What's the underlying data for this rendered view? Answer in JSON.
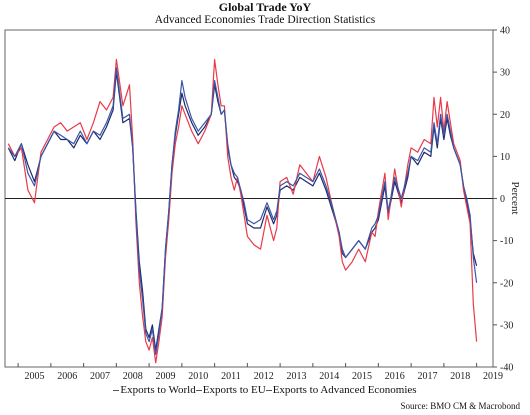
{
  "chart_data": {
    "type": "line",
    "title": "Global Trade YoY",
    "subtitle": "Advanced Economies Trade Direction Statistics",
    "ylabel": "Percent",
    "xlabel": "",
    "ylim": [
      -40,
      40
    ],
    "yticks": [
      40,
      30,
      20,
      10,
      0,
      -10,
      -20,
      -30,
      -40
    ],
    "xlim": [
      2004.6,
      2019.5
    ],
    "xticks": [
      "2005",
      "2006",
      "2007",
      "2008",
      "2009",
      "2010",
      "2011",
      "2012",
      "2013",
      "2014",
      "2015",
      "2016",
      "2017",
      "2018",
      "2019"
    ],
    "grid": false,
    "legend_position": "bottom",
    "zero_line": true,
    "series": [
      {
        "name": "Exports to World",
        "color": "#1c2a6b",
        "points": [
          [
            2004.7,
            12
          ],
          [
            2004.9,
            9
          ],
          [
            2005.1,
            13
          ],
          [
            2005.3,
            8
          ],
          [
            2005.5,
            4
          ],
          [
            2005.7,
            10
          ],
          [
            2005.9,
            13
          ],
          [
            2006.1,
            16
          ],
          [
            2006.3,
            14
          ],
          [
            2006.5,
            14
          ],
          [
            2006.7,
            12
          ],
          [
            2006.9,
            15
          ],
          [
            2007.1,
            13
          ],
          [
            2007.3,
            16
          ],
          [
            2007.5,
            14
          ],
          [
            2007.7,
            17
          ],
          [
            2007.9,
            21
          ],
          [
            2008.0,
            30
          ],
          [
            2008.2,
            18
          ],
          [
            2008.4,
            19
          ],
          [
            2008.5,
            12
          ],
          [
            2008.6,
            -3
          ],
          [
            2008.7,
            -15
          ],
          [
            2008.8,
            -22
          ],
          [
            2008.9,
            -31
          ],
          [
            2009.0,
            -33
          ],
          [
            2009.1,
            -30
          ],
          [
            2009.2,
            -36
          ],
          [
            2009.3,
            -31
          ],
          [
            2009.4,
            -26
          ],
          [
            2009.5,
            -12
          ],
          [
            2009.6,
            -3
          ],
          [
            2009.7,
            8
          ],
          [
            2009.8,
            15
          ],
          [
            2009.9,
            20
          ],
          [
            2010.0,
            25
          ],
          [
            2010.1,
            22
          ],
          [
            2010.3,
            18
          ],
          [
            2010.5,
            15
          ],
          [
            2010.7,
            17
          ],
          [
            2010.9,
            20
          ],
          [
            2011.0,
            27
          ],
          [
            2011.1,
            23
          ],
          [
            2011.2,
            20
          ],
          [
            2011.3,
            21
          ],
          [
            2011.4,
            12
          ],
          [
            2011.5,
            8
          ],
          [
            2011.6,
            5
          ],
          [
            2011.7,
            4
          ],
          [
            2011.8,
            2
          ],
          [
            2011.9,
            -2
          ],
          [
            2012.0,
            -6
          ],
          [
            2012.2,
            -7
          ],
          [
            2012.4,
            -7
          ],
          [
            2012.6,
            -2
          ],
          [
            2012.8,
            -6
          ],
          [
            2012.9,
            -4
          ],
          [
            2013.0,
            2
          ],
          [
            2013.2,
            3
          ],
          [
            2013.4,
            2
          ],
          [
            2013.6,
            5
          ],
          [
            2013.8,
            4
          ],
          [
            2014.0,
            3
          ],
          [
            2014.2,
            6
          ],
          [
            2014.4,
            2
          ],
          [
            2014.6,
            -3
          ],
          [
            2014.8,
            -8
          ],
          [
            2014.9,
            -13
          ],
          [
            2015.0,
            -14
          ],
          [
            2015.2,
            -12
          ],
          [
            2015.4,
            -10
          ],
          [
            2015.6,
            -12
          ],
          [
            2015.8,
            -8
          ],
          [
            2015.9,
            -7
          ],
          [
            2016.0,
            -5
          ],
          [
            2016.2,
            3
          ],
          [
            2016.3,
            -4
          ],
          [
            2016.5,
            4
          ],
          [
            2016.7,
            -1
          ],
          [
            2016.9,
            5
          ],
          [
            2017.0,
            10
          ],
          [
            2017.2,
            8
          ],
          [
            2017.4,
            11
          ],
          [
            2017.6,
            10
          ],
          [
            2017.7,
            17
          ],
          [
            2017.8,
            12
          ],
          [
            2017.9,
            19
          ],
          [
            2018.0,
            14
          ],
          [
            2018.1,
            19
          ],
          [
            2018.2,
            15
          ],
          [
            2018.3,
            12
          ],
          [
            2018.4,
            10
          ],
          [
            2018.5,
            8
          ],
          [
            2018.6,
            3
          ],
          [
            2018.7,
            -1
          ],
          [
            2018.8,
            -5
          ],
          [
            2018.9,
            -13
          ],
          [
            2019.0,
            -16
          ]
        ]
      },
      {
        "name": "Exports to EU",
        "color": "#e83a4a",
        "points": [
          [
            2004.7,
            13
          ],
          [
            2004.9,
            10
          ],
          [
            2005.1,
            12
          ],
          [
            2005.3,
            2
          ],
          [
            2005.5,
            -1
          ],
          [
            2005.7,
            11
          ],
          [
            2005.9,
            14
          ],
          [
            2006.1,
            17
          ],
          [
            2006.3,
            18
          ],
          [
            2006.5,
            16
          ],
          [
            2006.7,
            17
          ],
          [
            2006.9,
            18
          ],
          [
            2007.1,
            14
          ],
          [
            2007.3,
            18
          ],
          [
            2007.5,
            23
          ],
          [
            2007.7,
            21
          ],
          [
            2007.9,
            24
          ],
          [
            2008.0,
            33
          ],
          [
            2008.2,
            22
          ],
          [
            2008.4,
            27
          ],
          [
            2008.5,
            14
          ],
          [
            2008.6,
            -6
          ],
          [
            2008.7,
            -20
          ],
          [
            2008.8,
            -28
          ],
          [
            2008.9,
            -34
          ],
          [
            2009.0,
            -36
          ],
          [
            2009.1,
            -33
          ],
          [
            2009.2,
            -39
          ],
          [
            2009.3,
            -34
          ],
          [
            2009.4,
            -28
          ],
          [
            2009.5,
            -14
          ],
          [
            2009.6,
            -5
          ],
          [
            2009.7,
            6
          ],
          [
            2009.8,
            13
          ],
          [
            2009.9,
            17
          ],
          [
            2010.0,
            22
          ],
          [
            2010.1,
            20
          ],
          [
            2010.3,
            16
          ],
          [
            2010.5,
            13
          ],
          [
            2010.7,
            16
          ],
          [
            2010.9,
            20
          ],
          [
            2011.0,
            33
          ],
          [
            2011.1,
            27
          ],
          [
            2011.2,
            22
          ],
          [
            2011.3,
            22
          ],
          [
            2011.4,
            10
          ],
          [
            2011.5,
            5
          ],
          [
            2011.6,
            2
          ],
          [
            2011.7,
            5
          ],
          [
            2011.8,
            1
          ],
          [
            2011.9,
            -4
          ],
          [
            2012.0,
            -9
          ],
          [
            2012.2,
            -11
          ],
          [
            2012.4,
            -12
          ],
          [
            2012.6,
            -4
          ],
          [
            2012.8,
            -10
          ],
          [
            2012.9,
            -7
          ],
          [
            2013.0,
            4
          ],
          [
            2013.2,
            5
          ],
          [
            2013.4,
            1
          ],
          [
            2013.6,
            8
          ],
          [
            2013.8,
            6
          ],
          [
            2014.0,
            4
          ],
          [
            2014.2,
            10
          ],
          [
            2014.4,
            5
          ],
          [
            2014.6,
            -2
          ],
          [
            2014.8,
            -9
          ],
          [
            2014.9,
            -15
          ],
          [
            2015.0,
            -17
          ],
          [
            2015.2,
            -15
          ],
          [
            2015.4,
            -12
          ],
          [
            2015.6,
            -15
          ],
          [
            2015.8,
            -8
          ],
          [
            2015.9,
            -9
          ],
          [
            2016.0,
            -3
          ],
          [
            2016.2,
            6
          ],
          [
            2016.3,
            -5
          ],
          [
            2016.5,
            7
          ],
          [
            2016.7,
            -2
          ],
          [
            2016.9,
            8
          ],
          [
            2017.0,
            12
          ],
          [
            2017.2,
            11
          ],
          [
            2017.4,
            14
          ],
          [
            2017.6,
            13
          ],
          [
            2017.7,
            24
          ],
          [
            2017.8,
            17
          ],
          [
            2017.9,
            24
          ],
          [
            2018.0,
            16
          ],
          [
            2018.1,
            23
          ],
          [
            2018.2,
            18
          ],
          [
            2018.3,
            13
          ],
          [
            2018.4,
            11
          ],
          [
            2018.5,
            9
          ],
          [
            2018.6,
            2
          ],
          [
            2018.7,
            -2
          ],
          [
            2018.8,
            -6
          ],
          [
            2018.9,
            -25
          ],
          [
            2019.0,
            -34
          ]
        ]
      },
      {
        "name": "Exports to Advanced Economies",
        "color": "#3a56a8",
        "points": [
          [
            2004.7,
            12
          ],
          [
            2004.9,
            10
          ],
          [
            2005.1,
            13
          ],
          [
            2005.3,
            6
          ],
          [
            2005.5,
            3
          ],
          [
            2005.7,
            10
          ],
          [
            2005.9,
            13
          ],
          [
            2006.1,
            16
          ],
          [
            2006.3,
            15
          ],
          [
            2006.5,
            14
          ],
          [
            2006.7,
            13
          ],
          [
            2006.9,
            16
          ],
          [
            2007.1,
            13
          ],
          [
            2007.3,
            16
          ],
          [
            2007.5,
            15
          ],
          [
            2007.7,
            18
          ],
          [
            2007.9,
            22
          ],
          [
            2008.0,
            31
          ],
          [
            2008.2,
            19
          ],
          [
            2008.4,
            20
          ],
          [
            2008.5,
            12
          ],
          [
            2008.6,
            -4
          ],
          [
            2008.7,
            -17
          ],
          [
            2008.8,
            -24
          ],
          [
            2008.9,
            -32
          ],
          [
            2009.0,
            -34
          ],
          [
            2009.1,
            -31
          ],
          [
            2009.2,
            -37
          ],
          [
            2009.3,
            -32
          ],
          [
            2009.4,
            -26
          ],
          [
            2009.5,
            -12
          ],
          [
            2009.6,
            -3
          ],
          [
            2009.7,
            8
          ],
          [
            2009.8,
            16
          ],
          [
            2009.9,
            21
          ],
          [
            2010.0,
            28
          ],
          [
            2010.1,
            24
          ],
          [
            2010.3,
            19
          ],
          [
            2010.5,
            16
          ],
          [
            2010.7,
            18
          ],
          [
            2010.9,
            20
          ],
          [
            2011.0,
            28
          ],
          [
            2011.1,
            24
          ],
          [
            2011.2,
            20
          ],
          [
            2011.3,
            21
          ],
          [
            2011.4,
            13
          ],
          [
            2011.5,
            8
          ],
          [
            2011.6,
            6
          ],
          [
            2011.7,
            5
          ],
          [
            2011.8,
            2
          ],
          [
            2011.9,
            -1
          ],
          [
            2012.0,
            -5
          ],
          [
            2012.2,
            -6
          ],
          [
            2012.4,
            -5
          ],
          [
            2012.6,
            -1
          ],
          [
            2012.8,
            -5
          ],
          [
            2012.9,
            -3
          ],
          [
            2013.0,
            3
          ],
          [
            2013.2,
            4
          ],
          [
            2013.4,
            3
          ],
          [
            2013.6,
            6
          ],
          [
            2013.8,
            5
          ],
          [
            2014.0,
            4
          ],
          [
            2014.2,
            7
          ],
          [
            2014.4,
            3
          ],
          [
            2014.6,
            -2
          ],
          [
            2014.8,
            -8
          ],
          [
            2014.9,
            -12
          ],
          [
            2015.0,
            -14
          ],
          [
            2015.2,
            -12
          ],
          [
            2015.4,
            -10
          ],
          [
            2015.6,
            -12
          ],
          [
            2015.8,
            -7
          ],
          [
            2015.9,
            -6
          ],
          [
            2016.0,
            -4
          ],
          [
            2016.2,
            4
          ],
          [
            2016.3,
            -3
          ],
          [
            2016.5,
            5
          ],
          [
            2016.7,
            0
          ],
          [
            2016.9,
            6
          ],
          [
            2017.0,
            10
          ],
          [
            2017.2,
            9
          ],
          [
            2017.4,
            12
          ],
          [
            2017.6,
            11
          ],
          [
            2017.7,
            18
          ],
          [
            2017.8,
            13
          ],
          [
            2017.9,
            20
          ],
          [
            2018.0,
            15
          ],
          [
            2018.1,
            20
          ],
          [
            2018.2,
            16
          ],
          [
            2018.3,
            12
          ],
          [
            2018.4,
            10
          ],
          [
            2018.5,
            8
          ],
          [
            2018.6,
            3
          ],
          [
            2018.7,
            0
          ],
          [
            2018.8,
            -4
          ],
          [
            2018.9,
            -14
          ],
          [
            2019.0,
            -20
          ]
        ]
      }
    ]
  },
  "legend": {
    "items": [
      "Exports to World",
      "Exports to EU",
      "Exports to Advanced Economies"
    ]
  },
  "source": "Source: BMO CM & Macrobond"
}
